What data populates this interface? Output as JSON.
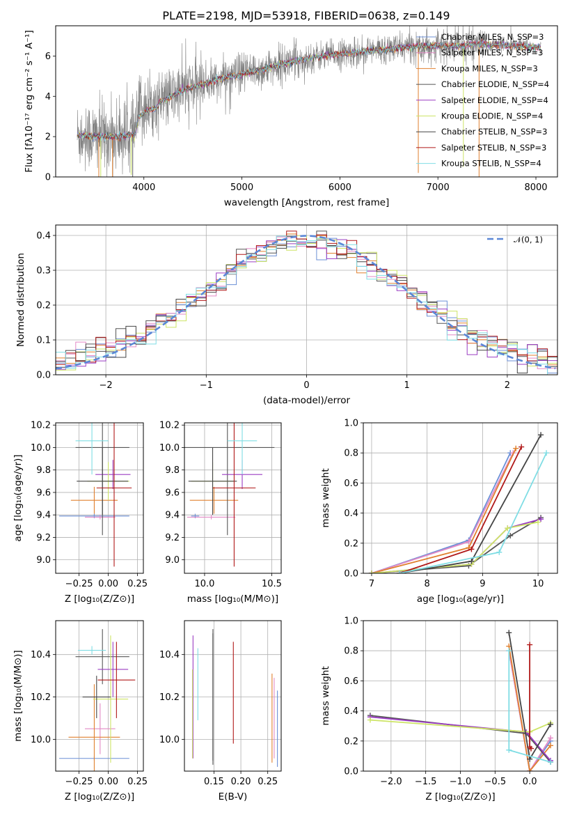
{
  "colors": [
    "#6b8fd6",
    "#e389c5",
    "#e0802f",
    "#555555",
    "#9a3cc2",
    "#cde466",
    "#444444",
    "#b01818",
    "#7fdde4"
  ],
  "chart_data": [
    {
      "id": "spectrum",
      "type": "line",
      "title": "PLATE=2198, MJD=53918, FIBERID=0638, z=0.149",
      "xlabel": "wavelength [Angstrom, rest frame]",
      "ylabel": "Flux [fλ10⁻¹⁷ erg cm⁻² s⁻¹ A⁻¹]",
      "xlim": [
        3100,
        8220
      ],
      "ylim": [
        0,
        7.5
      ],
      "xticks": [
        4000,
        5000,
        6000,
        7000,
        8000
      ],
      "yticks": [
        0,
        2,
        4,
        6
      ],
      "grid": false,
      "legend_position": "upper-right",
      "legend": [
        "Chabrier MILES, N_SSP=3",
        "Salpeter MILES, N_SSP=3",
        "Kroupa MILES, N_SSP=3",
        "Chabrier ELODIE, N_SSP=4",
        "Salpeter ELODIE, N_SSP=4",
        "Kroupa ELODIE, N_SSP=4",
        "Chabrier STELIB, N_SSP=3",
        "Salpeter STELIB, N_SSP=3",
        "Kroupa STELIB, N_SSP=4"
      ],
      "continuum_x": [
        3320,
        3500,
        3700,
        3900,
        3950,
        4000,
        4200,
        4400,
        4600,
        4800,
        4900,
        5000,
        5200,
        5400,
        5600,
        5800,
        6000,
        6200,
        6400,
        6600,
        6800,
        7000,
        7200,
        7400,
        7600,
        7800,
        8050
      ],
      "continuum_y": [
        2.1,
        2.0,
        2.0,
        2.1,
        3.2,
        3.4,
        3.8,
        4.3,
        4.6,
        4.9,
        5.0,
        5.1,
        5.3,
        5.6,
        5.8,
        6.0,
        6.1,
        6.2,
        6.3,
        6.4,
        6.5,
        6.5,
        6.5,
        6.6,
        6.55,
        6.5,
        6.4
      ]
    },
    {
      "id": "residuals",
      "type": "step",
      "xlabel": "(data-model)/error",
      "ylabel": "Normed distribution",
      "xlim": [
        -2.5,
        2.5
      ],
      "ylim": [
        0,
        0.43
      ],
      "xticks": [
        -2,
        -1,
        0,
        1,
        2
      ],
      "yticks": [
        0.0,
        0.1,
        0.2,
        0.3,
        0.4
      ],
      "grid": true,
      "legend_position": "upper-right",
      "gaussian_legend": "𝒩(0, 1)"
    },
    {
      "id": "age_vs_z",
      "type": "errorbar",
      "xlabel": "Z [log₁₀(Z/Z⊙)]",
      "ylabel": "age  [log₁₀(age/yr)]",
      "xlim": [
        -0.45,
        0.3
      ],
      "ylim": [
        8.88,
        10.22
      ],
      "xticks": [
        -0.25,
        0.0,
        0.25
      ],
      "xtick_labels": [
        "−0.25",
        "0.00",
        "0.25"
      ],
      "yticks": [
        9.0,
        9.2,
        9.4,
        9.6,
        9.8,
        10.0,
        10.2
      ],
      "grid": true,
      "points": [
        {
          "x": -0.12,
          "xerr": 0.3,
          "y": 9.39,
          "yerr": 0.02
        },
        {
          "x": -0.07,
          "xerr": 0.13,
          "y": 9.38,
          "yerr": 0.02
        },
        {
          "x": -0.12,
          "xerr": 0.2,
          "y": 9.53,
          "yerr": 0.12
        },
        {
          "x": -0.05,
          "xerr": 0.23,
          "y": 10.0,
          "yerr": 0.78
        },
        {
          "x": 0.04,
          "xerr": 0.15,
          "y": 9.76,
          "yerr": 0.13
        },
        {
          "x": 0.0,
          "xerr": 0.18,
          "y": 9.7,
          "yerr": 0.17
        },
        {
          "x": -0.05,
          "xerr": 0.22,
          "y": 9.7,
          "yerr": 0.3
        },
        {
          "x": 0.05,
          "xerr": 0.15,
          "y": 9.64,
          "yerr": 0.7
        },
        {
          "x": -0.14,
          "xerr": 0.14,
          "y": 10.06,
          "yerr": 0.3
        }
      ]
    },
    {
      "id": "age_vs_mass",
      "type": "errorbar",
      "xlabel": "mass [log₁₀(M/M⊙)]",
      "xlim": [
        9.85,
        10.57
      ],
      "ylim": [
        8.88,
        10.22
      ],
      "xticks": [
        10.0,
        10.5
      ],
      "xtick_labels": [
        "10.0",
        "10.5"
      ],
      "yticks": [
        9.0,
        9.2,
        9.4,
        9.6,
        9.8,
        10.0,
        10.2
      ],
      "grid": true,
      "points": [
        {
          "x": 9.93,
          "xerr": 0.03,
          "y": 9.39,
          "yerr": 0.02
        },
        {
          "x": 10.05,
          "xerr": 0.18,
          "y": 9.38,
          "yerr": 0.02
        },
        {
          "x": 10.07,
          "xerr": 0.18,
          "y": 9.53,
          "yerr": 0.12
        },
        {
          "x": 10.17,
          "xerr": 0.35,
          "y": 10.0,
          "yerr": 0.78
        },
        {
          "x": 10.28,
          "xerr": 0.15,
          "y": 9.76,
          "yerr": 0.13
        },
        {
          "x": 10.06,
          "xerr": 0.16,
          "y": 9.7,
          "yerr": 0.17
        },
        {
          "x": 10.06,
          "xerr": 0.18,
          "y": 9.7,
          "yerr": 0.3
        },
        {
          "x": 10.22,
          "xerr": 0.16,
          "y": 9.64,
          "yerr": 0.7
        },
        {
          "x": 10.28,
          "xerr": 0.11,
          "y": 10.06,
          "yerr": 0.3
        }
      ]
    },
    {
      "id": "mw_vs_age",
      "type": "line",
      "xlabel": "age  [log₁₀(age/yr)]",
      "ylabel": "mass weight",
      "xlim": [
        6.85,
        10.35
      ],
      "ylim": [
        0,
        1.0
      ],
      "xticks": [
        7,
        8,
        9,
        10
      ],
      "yticks": [
        0.0,
        0.2,
        0.4,
        0.6,
        0.8,
        1.0
      ],
      "grid": true,
      "series": [
        {
          "x": [
            7.0,
            8.75,
            9.5
          ],
          "y": [
            0.0,
            0.22,
            0.8
          ]
        },
        {
          "x": [
            7.0,
            8.75,
            9.55
          ],
          "y": [
            0.0,
            0.21,
            0.8
          ]
        },
        {
          "x": [
            7.0,
            8.75,
            9.6
          ],
          "y": [
            0.0,
            0.17,
            0.83
          ]
        },
        {
          "x": [
            7.0,
            8.75,
            9.5,
            10.05
          ],
          "y": [
            0.0,
            0.05,
            0.25,
            0.37
          ]
        },
        {
          "x": [
            7.0,
            8.8,
            9.45,
            10.05
          ],
          "y": [
            0.0,
            0.06,
            0.3,
            0.36
          ]
        },
        {
          "x": [
            7.0,
            8.8,
            9.45,
            10.0
          ],
          "y": [
            0.0,
            0.06,
            0.3,
            0.34
          ]
        },
        {
          "x": [
            7.5,
            8.8,
            10.05
          ],
          "y": [
            0.0,
            0.08,
            0.92
          ]
        },
        {
          "x": [
            7.5,
            8.8,
            9.7
          ],
          "y": [
            0.0,
            0.16,
            0.84
          ]
        },
        {
          "x": [
            7.5,
            9.3,
            10.15
          ],
          "y": [
            0.0,
            0.14,
            0.8
          ]
        }
      ]
    },
    {
      "id": "mass_vs_z",
      "type": "errorbar",
      "xlabel": "Z [log₁₀(Z/Z⊙)]",
      "ylabel": "mass [log₁₀(M/M⊙)]",
      "xlim": [
        -0.45,
        0.3
      ],
      "ylim": [
        9.85,
        10.56
      ],
      "xticks": [
        -0.25,
        0.0,
        0.25
      ],
      "xtick_labels": [
        "−0.25",
        "0.00",
        "0.25"
      ],
      "yticks": [
        10.0,
        10.2,
        10.4
      ],
      "grid": true,
      "points": [
        {
          "x": -0.12,
          "xerr": 0.3,
          "y": 9.91,
          "yerr": 0.01
        },
        {
          "x": -0.07,
          "xerr": 0.13,
          "y": 10.05,
          "yerr": 0.12
        },
        {
          "x": -0.12,
          "xerr": 0.22,
          "y": 10.01,
          "yerr": 0.25
        },
        {
          "x": -0.05,
          "xerr": 0.23,
          "y": 10.39,
          "yerr": 0.13
        },
        {
          "x": 0.04,
          "xerr": 0.13,
          "y": 10.33,
          "yerr": 0.13
        },
        {
          "x": 0.02,
          "xerr": 0.15,
          "y": 10.19,
          "yerr": 0.3
        },
        {
          "x": -0.1,
          "xerr": 0.12,
          "y": 10.2,
          "yerr": 0.1
        },
        {
          "x": 0.07,
          "xerr": 0.16,
          "y": 10.28,
          "yerr": 0.18
        },
        {
          "x": -0.14,
          "xerr": 0.12,
          "y": 10.42,
          "yerr": 0.02
        }
      ]
    },
    {
      "id": "mass_vs_ebv",
      "type": "errorbar",
      "xlabel": "E(B-V)",
      "xlim": [
        0.095,
        0.275
      ],
      "ylim": [
        9.85,
        10.56
      ],
      "xticks": [
        0.15,
        0.2,
        0.25
      ],
      "xtick_labels": [
        "0.15",
        "0.20",
        "0.25"
      ],
      "yticks": [
        10.0,
        10.2,
        10.4
      ],
      "grid": true,
      "points": [
        {
          "x": 0.268,
          "xerr": 0.0,
          "y": 10.05,
          "yerr": 0.18
        },
        {
          "x": 0.262,
          "xerr": 0.0,
          "y": 10.1,
          "yerr": 0.19
        },
        {
          "x": 0.258,
          "xerr": 0.0,
          "y": 10.1,
          "yerr": 0.21
        },
        {
          "x": 0.148,
          "xerr": 0.0,
          "y": 10.2,
          "yerr": 0.32
        },
        {
          "x": 0.111,
          "xerr": 0.0,
          "y": 10.2,
          "yerr": 0.29
        },
        {
          "x": 0.11,
          "xerr": 0.0,
          "y": 10.12,
          "yerr": 0.21
        },
        {
          "x": 0.148,
          "xerr": 0.0,
          "y": 10.2,
          "yerr": 0.3
        },
        {
          "x": 0.186,
          "xerr": 0.0,
          "y": 10.22,
          "yerr": 0.24
        },
        {
          "x": 0.12,
          "xerr": 0.0,
          "y": 10.26,
          "yerr": 0.17
        }
      ]
    },
    {
      "id": "mw_vs_z",
      "type": "line",
      "xlabel": "Z [log₁₀(Z/Z⊙)]",
      "ylabel": "mass weight",
      "xlim": [
        -2.4,
        0.4
      ],
      "ylim": [
        0,
        1.0
      ],
      "xticks": [
        -2.0,
        -1.5,
        -1.0,
        -0.5,
        0.0
      ],
      "xtick_labels": [
        "−2.0",
        "−1.5",
        "−1.0",
        "−0.5",
        "0.0"
      ],
      "yticks": [
        0.0,
        0.2,
        0.4,
        0.6,
        0.8,
        1.0
      ],
      "grid": true,
      "series": [
        {
          "x": [
            -0.3,
            0.0,
            0.3
          ],
          "y": [
            0.8,
            0.0,
            0.2
          ]
        },
        {
          "x": [
            -0.3,
            0.0,
            0.3
          ],
          "y": [
            0.8,
            0.0,
            0.22
          ]
        },
        {
          "x": [
            -0.3,
            0.0,
            0.3
          ],
          "y": [
            0.83,
            0.0,
            0.17
          ]
        },
        {
          "x": [
            -2.3,
            -0.05,
            0.3
          ],
          "y": [
            0.37,
            0.25,
            0.06
          ]
        },
        {
          "x": [
            -2.3,
            -0.05,
            0.3
          ],
          "y": [
            0.36,
            0.26,
            0.07
          ]
        },
        {
          "x": [
            -2.3,
            0.0,
            0.3
          ],
          "y": [
            0.34,
            0.26,
            0.32
          ]
        },
        {
          "x": [
            -0.3,
            0.0,
            0.3
          ],
          "y": [
            0.92,
            0.08,
            0.31
          ]
        },
        {
          "x": [
            0.0,
            0.0,
            0.02
          ],
          "y": [
            0.84,
            0.16,
            0.15
          ]
        },
        {
          "x": [
            -0.3,
            -0.3,
            0.3
          ],
          "y": [
            0.8,
            0.14,
            0.06
          ]
        }
      ]
    }
  ]
}
